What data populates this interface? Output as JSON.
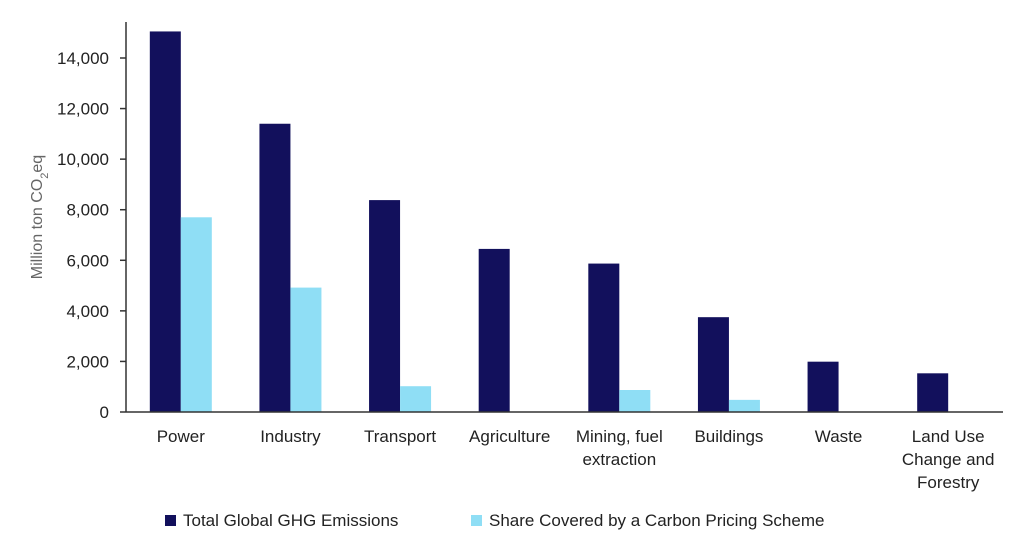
{
  "chart_data": {
    "type": "bar",
    "title": "",
    "xlabel": "",
    "ylabel": {
      "prefix": "Million ton CO",
      "subscript": "2",
      "suffix": "eq"
    },
    "ylim": [
      0,
      15000
    ],
    "yticks": [
      0,
      2000,
      4000,
      6000,
      8000,
      10000,
      12000,
      14000
    ],
    "ytick_labels": [
      "0",
      "2,000",
      "4,000",
      "6,000",
      "8,000",
      "10,000",
      "12,000",
      "14,000"
    ],
    "categories": [
      [
        "Power"
      ],
      [
        "Industry"
      ],
      [
        "Transport"
      ],
      [
        "Agriculture"
      ],
      [
        "Mining, fuel",
        "extraction"
      ],
      [
        "Buildings"
      ],
      [
        "Waste"
      ],
      [
        "Land Use",
        "Change and",
        "Forestry"
      ]
    ],
    "series": [
      {
        "name": "Total Global GHG Emissions",
        "color": "#12105c",
        "values": [
          15050,
          11400,
          8380,
          6450,
          5870,
          3750,
          1990,
          1530
        ]
      },
      {
        "name": "Share Covered by a Carbon Pricing Scheme",
        "color": "#8fdef5",
        "values": [
          7700,
          4920,
          1020,
          0,
          870,
          480,
          0,
          0
        ]
      }
    ],
    "grid": false,
    "legend": "bottom"
  }
}
